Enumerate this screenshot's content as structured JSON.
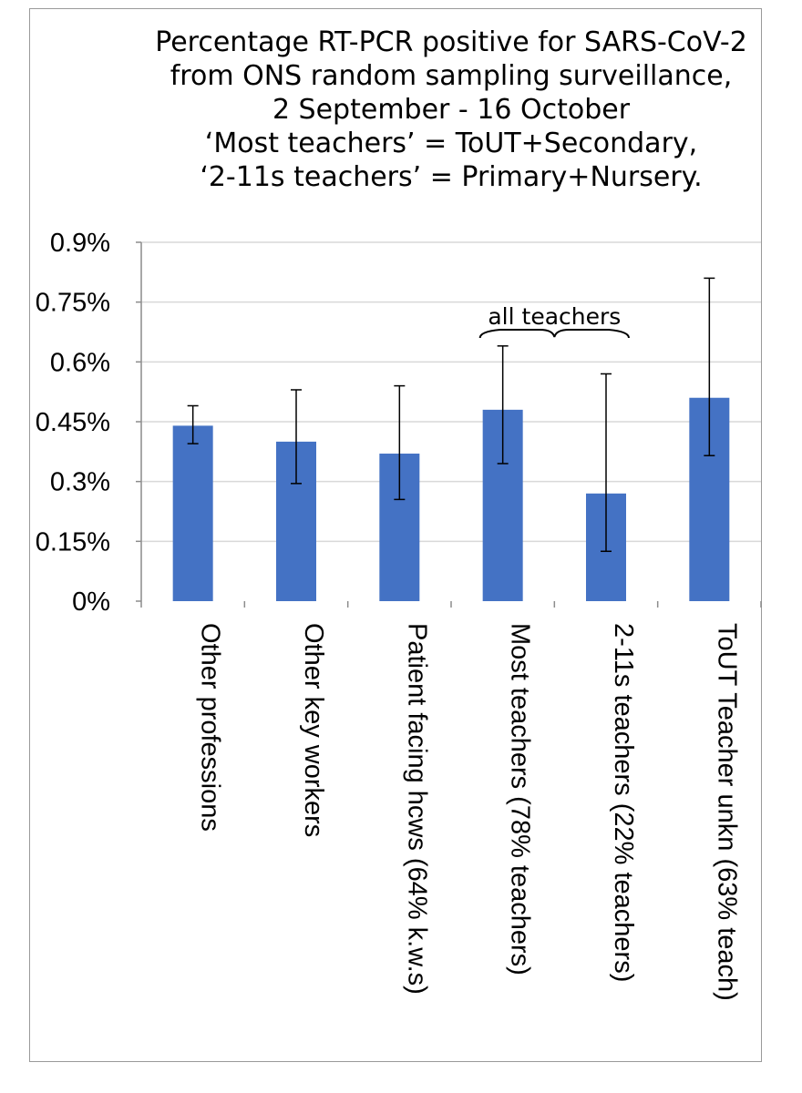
{
  "chart_data": {
    "type": "bar",
    "title_lines": [
      "Percentage RT-PCR positive for SARS-CoV-2",
      "from ONS random sampling surveillance,",
      "2 September - 16 October",
      "‘Most teachers’ = ToUT+Secondary,",
      "‘2-11s teachers’ = Primary+Nursery."
    ],
    "categories": [
      "Other professions",
      "Other key workers",
      "Patient facing hcws (64% k.w.s)",
      "Most teachers (78% teachers)",
      "2-11s teachers (22% teachers)",
      "ToUT Teacher unkn (63% teach)"
    ],
    "values": [
      0.44,
      0.4,
      0.37,
      0.48,
      0.27,
      0.51
    ],
    "error_low": [
      0.395,
      0.295,
      0.255,
      0.345,
      0.125,
      0.365
    ],
    "error_high": [
      0.49,
      0.53,
      0.54,
      0.64,
      0.57,
      0.81
    ],
    "ylim": [
      0,
      0.9
    ],
    "yticks": [
      0,
      0.15,
      0.3,
      0.45,
      0.6,
      0.75,
      0.9
    ],
    "ytick_labels": [
      "0%",
      "0.15%",
      "0.3%",
      "0.45%",
      "0.6%",
      "0.75%",
      "0.9%"
    ],
    "grid": true,
    "bar_color": "#4472c4",
    "annotation": {
      "text": "all teachers",
      "span_categories": [
        3,
        4
      ]
    }
  }
}
